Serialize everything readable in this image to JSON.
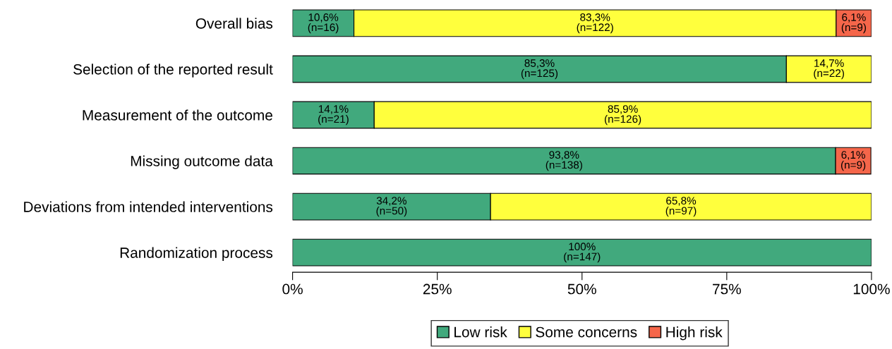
{
  "chart_data": {
    "type": "bar",
    "orientation": "horizontal",
    "stacked": true,
    "categories": [
      "Overall bias",
      "Selection of the reported result",
      "Measurement of the outcome",
      "Missing outcome data",
      "Deviations from intended interventions",
      "Randomization process"
    ],
    "series": [
      {
        "name": "Low risk",
        "color": "#41a97d",
        "values": [
          10.6,
          85.3,
          14.1,
          93.8,
          34.2,
          100
        ],
        "value_labels": [
          "10,6%\n(n=16)",
          "85,3%\n(n=125)",
          "14,1%\n(n=21)",
          "93,8%\n(n=138)",
          "34,2%\n(n=50)",
          "100%\n(n=147)"
        ]
      },
      {
        "name": "Some concerns",
        "color": "#ffff3d",
        "values": [
          83.3,
          14.7,
          85.9,
          null,
          65.8,
          null
        ],
        "value_labels": [
          "83,3%\n(n=122)",
          "14,7%\n(n=22)",
          "85,9%\n(n=126)",
          null,
          "65,8%\n(n=97)",
          null
        ]
      },
      {
        "name": "High risk",
        "color": "#f5664a",
        "values": [
          6.1,
          null,
          null,
          6.1,
          null,
          null
        ],
        "value_labels": [
          "6,1%\n(n=9)",
          null,
          null,
          "6,1%\n(n=9)",
          null,
          null
        ]
      }
    ],
    "xlim": [
      0,
      100
    ],
    "xticks": [
      {
        "value": 0,
        "label": "0%"
      },
      {
        "value": 25,
        "label": "25%"
      },
      {
        "value": 50,
        "label": "50%"
      },
      {
        "value": 75,
        "label": "75%"
      },
      {
        "value": 100,
        "label": "100%"
      }
    ],
    "legend": "bottom",
    "grid": false
  }
}
